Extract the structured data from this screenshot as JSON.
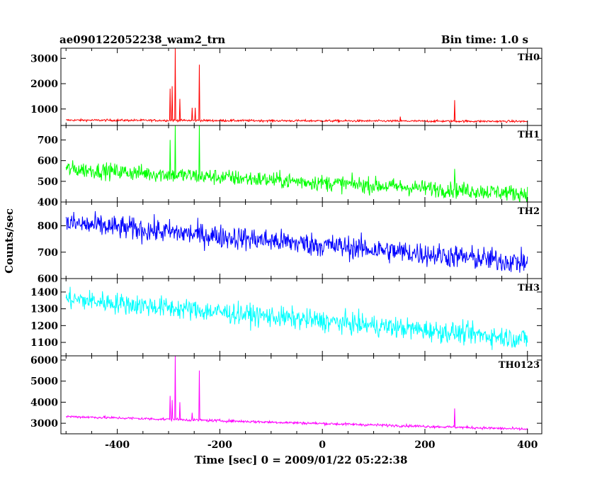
{
  "header": {
    "left_title": "ae090122052238_wam2_trn",
    "right_title": "Bin time: 1.0 s"
  },
  "chart_data": {
    "type": "line",
    "title": "ae090122052238_wam2_trn",
    "subtitle": "Bin time: 1.0 s",
    "xlabel": "Time [sec] 0 = 2009/01/22 05:22:38",
    "ylabel": "Counts/sec",
    "xlim": [
      -510,
      428
    ],
    "x_ticks": [
      -400,
      -200,
      0,
      200,
      400
    ],
    "grid": false,
    "legend": "none",
    "panels": [
      {
        "name": "TH0",
        "color": "#ff0000",
        "ylim": [
          350,
          3400
        ],
        "y_ticks": [
          1000,
          2000,
          3000
        ],
        "base_start": 560,
        "base_end": 510,
        "noise": 30,
        "spikes": [
          {
            "t": -297,
            "v": 1800
          },
          {
            "t": -293,
            "v": 1900
          },
          {
            "t": -287,
            "v": 3400
          },
          {
            "t": -278,
            "v": 1400
          },
          {
            "t": -254,
            "v": 1050
          },
          {
            "t": -248,
            "v": 1050
          },
          {
            "t": -240,
            "v": 2750
          },
          {
            "t": 152,
            "v": 700
          },
          {
            "t": 258,
            "v": 1350
          }
        ]
      },
      {
        "name": "TH1",
        "color": "#00ff00",
        "ylim": [
          400,
          770
        ],
        "y_ticks": [
          400,
          500,
          600,
          700
        ],
        "base_start": 560,
        "base_end": 440,
        "noise": 28,
        "spikes": [
          {
            "t": -297,
            "v": 700
          },
          {
            "t": -287,
            "v": 770
          },
          {
            "t": -240,
            "v": 770
          },
          {
            "t": 258,
            "v": 560
          }
        ]
      },
      {
        "name": "TH2",
        "color": "#0000ff",
        "ylim": [
          600,
          890
        ],
        "y_ticks": [
          600,
          700,
          800
        ],
        "base_start": 810,
        "base_end": 660,
        "noise": 32,
        "spikes": []
      },
      {
        "name": "TH3",
        "color": "#00ffff",
        "ylim": [
          1020,
          1480
        ],
        "y_ticks": [
          1100,
          1200,
          1300,
          1400
        ],
        "base_start": 1360,
        "base_end": 1120,
        "noise": 45,
        "spikes": []
      },
      {
        "name": "TH0123",
        "color": "#ff00ff",
        "ylim": [
          2500,
          6200
        ],
        "y_ticks": [
          3000,
          4000,
          5000,
          6000
        ],
        "base_start": 3320,
        "base_end": 2720,
        "noise": 45,
        "spikes": [
          {
            "t": -297,
            "v": 4300
          },
          {
            "t": -293,
            "v": 4100
          },
          {
            "t": -287,
            "v": 6200
          },
          {
            "t": -278,
            "v": 4000
          },
          {
            "t": -254,
            "v": 3500
          },
          {
            "t": -240,
            "v": 5500
          },
          {
            "t": 258,
            "v": 3700
          }
        ]
      }
    ]
  }
}
